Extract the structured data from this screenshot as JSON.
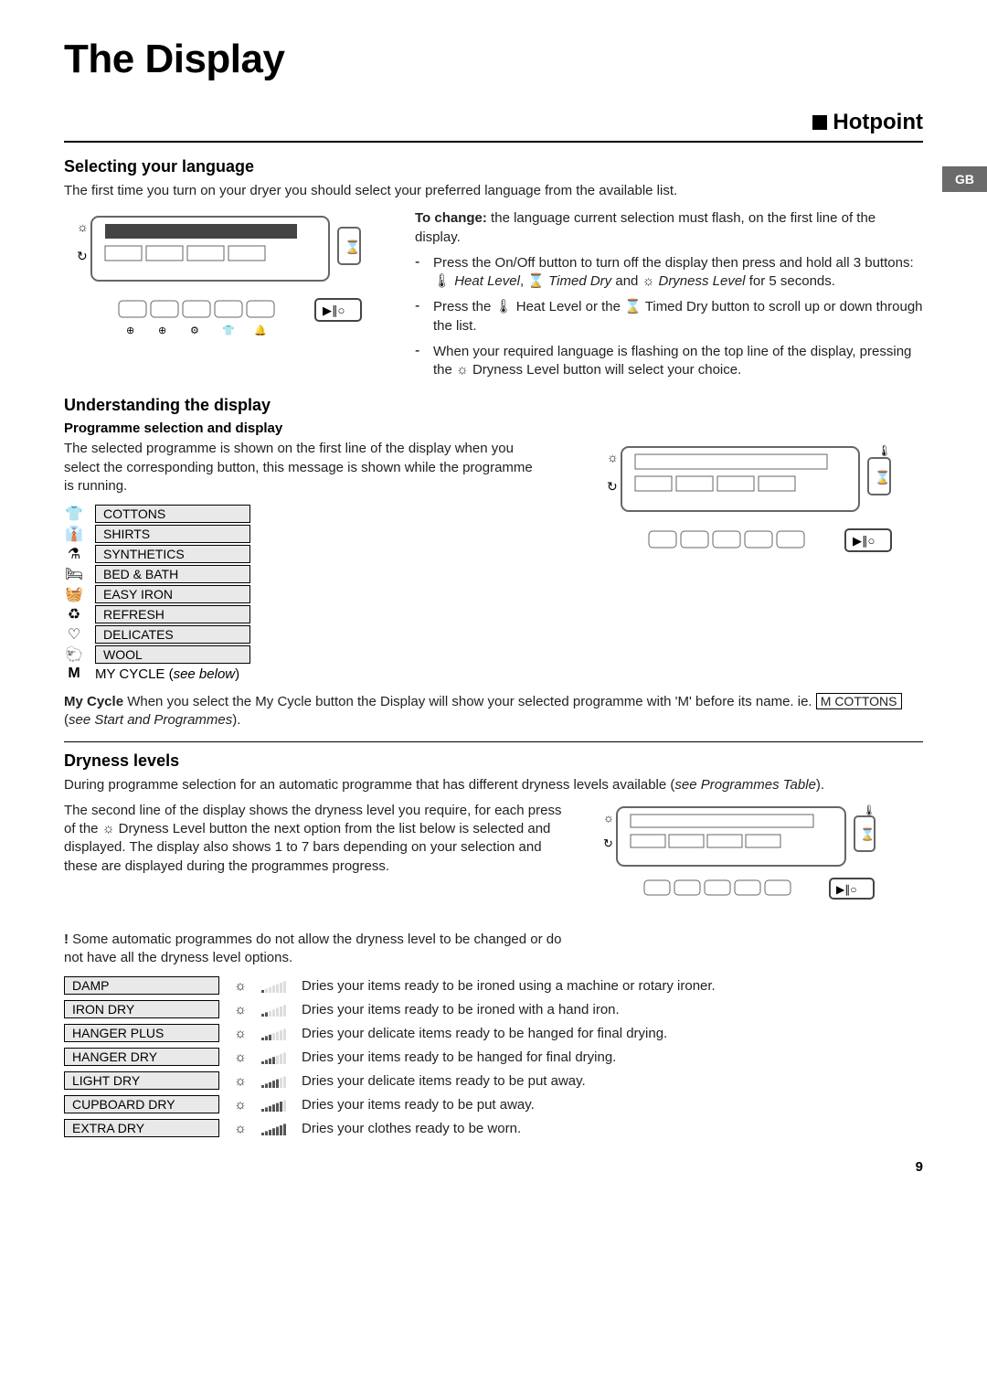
{
  "page": {
    "title": "The Display",
    "brand": "Hotpoint",
    "gb_label": "GB",
    "page_number": "9"
  },
  "select_lang": {
    "heading": "Selecting your language",
    "intro": "The first time you turn on your dryer you should select your preferred language from the available list.",
    "to_change_label": "To change:",
    "to_change_text": " the language current selection must flash, on the first line of the display.",
    "b1_pre": "Press the On/Off button to turn off the display then press and hold all 3 buttons: ",
    "b1_heat": " Heat Level",
    "b1_timed": " Timed Dry",
    "b1_and": " and ",
    "b1_dry": " Dryness Level",
    "b1_post": " for 5 seconds.",
    "b2_pre": "Press the ",
    "b2_mid": " Heat Level or the ",
    "b2_post": "  Timed Dry button to scroll up or down through the list.",
    "b3_pre": "When your required language is flashing on the top line of the display, pressing the ",
    "b3_post": " Dryness Level button will select your choice."
  },
  "understand": {
    "heading": "Understanding the display",
    "sub": "Programme selection and display",
    "text": "The selected programme is shown on the first line of the display when you select the corresponding button, this message is shown while the programme is running.",
    "programmes": [
      {
        "icon": "👕",
        "label": "COTTONS"
      },
      {
        "icon": "👔",
        "label": "SHIRTS"
      },
      {
        "icon": "⚗",
        "label": "SYNTHETICS"
      },
      {
        "icon": "🛏",
        "label": "BED & BATH"
      },
      {
        "icon": "🧺",
        "label": "EASY IRON"
      },
      {
        "icon": "♻",
        "label": "REFRESH"
      },
      {
        "icon": "♡",
        "label": "DELICATES"
      },
      {
        "icon": "🐑",
        "label": "WOOL"
      }
    ],
    "mycycle_icon": "M",
    "mycycle_label_pre": "MY CYCLE (",
    "mycycle_label_ital": "see below",
    "mycycle_label_post": ")",
    "mycycle_para_bold": "My Cycle",
    "mycycle_para_pre": " When you select the My Cycle button the Display will show your selected programme with 'M' before its name.  ie. ",
    "mycycle_box": "M  COTTONS",
    "mycycle_para_mid": " (",
    "mycycle_para_ital": "see Start and Programmes",
    "mycycle_para_post": ")."
  },
  "dryness": {
    "heading": "Dryness levels",
    "intro_pre": "During programme selection for an automatic programme that has different dryness levels available (",
    "intro_ital": "see Programmes Table",
    "intro_post": ").",
    "para2_pre": "The second line of the display shows the dryness level you require, for each press of the ",
    "para2_post": " Dryness Level button the next option from the list below is selected and displayed. The display also shows 1 to 7 bars depending on your selection and these are displayed during the programmes progress.",
    "note": " Some automatic programmes do not allow the dryness level to be changed or do not have all the dryness level options.",
    "note_bang": "!",
    "levels": [
      {
        "label": "DAMP",
        "bars": 1,
        "desc": "Dries your items ready to be ironed using a machine or rotary ironer."
      },
      {
        "label": "IRON DRY",
        "bars": 2,
        "desc": "Dries your items ready to be ironed with a hand iron."
      },
      {
        "label": "HANGER PLUS",
        "bars": 3,
        "desc": "Dries your delicate items ready to be hanged for final drying."
      },
      {
        "label": "HANGER DRY",
        "bars": 4,
        "desc": "Dries your items ready to be hanged for final drying."
      },
      {
        "label": "LIGHT DRY",
        "bars": 5,
        "desc": "Dries your delicate items ready to be put away."
      },
      {
        "label": "CUPBOARD DRY",
        "bars": 6,
        "desc": "Dries your items ready to be put away."
      },
      {
        "label": "EXTRA DRY",
        "bars": 7,
        "desc": "Dries your clothes ready to be worn."
      }
    ]
  },
  "colors": {
    "cell_bg": "#e9e9e9",
    "gb_bg": "#6b6b6b"
  }
}
